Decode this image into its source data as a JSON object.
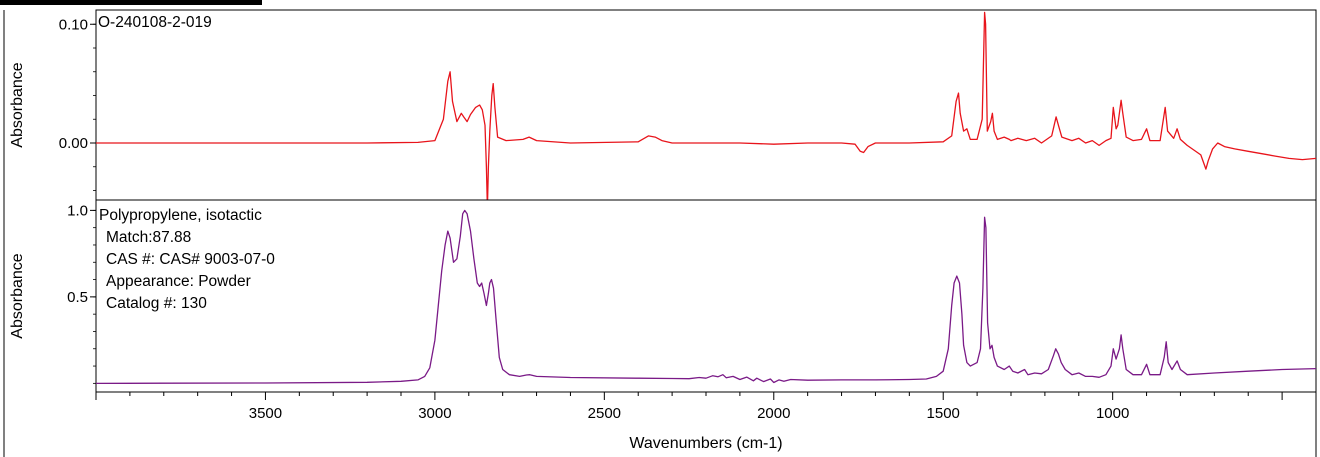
{
  "chart_data": {
    "type": "line",
    "xlabel": "Wavenumbers (cm-1)",
    "x_reversed": true,
    "xlim": [
      4000,
      400
    ],
    "x_ticks": [
      3500,
      3000,
      2500,
      2000,
      1500,
      1000
    ],
    "panels": [
      {
        "ylabel": "Absorbance",
        "ylim": [
          -0.048,
          0.112
        ],
        "y_ticks": [
          0.1,
          0.0
        ],
        "y_tick_labels": [
          "0.10",
          "0.00"
        ],
        "annotations": [
          "O-240108-2-019"
        ],
        "series": [
          {
            "color": "#e8141b",
            "points": [
              [
                4000,
                0.0
              ],
              [
                3800,
                0.0
              ],
              [
                3500,
                0.0
              ],
              [
                3200,
                0.0
              ],
              [
                3050,
                0.0005
              ],
              [
                3000,
                0.002
              ],
              [
                2975,
                0.02
              ],
              [
                2962,
                0.052
              ],
              [
                2955,
                0.06
              ],
              [
                2948,
                0.035
              ],
              [
                2935,
                0.018
              ],
              [
                2922,
                0.025
              ],
              [
                2915,
                0.022
              ],
              [
                2905,
                0.018
              ],
              [
                2895,
                0.024
              ],
              [
                2880,
                0.03
              ],
              [
                2868,
                0.032
              ],
              [
                2860,
                0.028
              ],
              [
                2852,
                0.015
              ],
              [
                2848,
                -0.02
              ],
              [
                2845,
                -0.055
              ],
              [
                2842,
                -0.02
              ],
              [
                2838,
                0.01
              ],
              [
                2832,
                0.04
              ],
              [
                2828,
                0.05
              ],
              [
                2823,
                0.03
              ],
              [
                2815,
                0.005
              ],
              [
                2790,
                0.002
              ],
              [
                2740,
                0.003
              ],
              [
                2722,
                0.005
              ],
              [
                2700,
                0.002
              ],
              [
                2600,
                0.0
              ],
              [
                2400,
                0.001
              ],
              [
                2370,
                0.006
              ],
              [
                2350,
                0.005
              ],
              [
                2330,
                0.002
              ],
              [
                2300,
                0.0
              ],
              [
                2200,
                0.0
              ],
              [
                2100,
                0.0
              ],
              [
                2000,
                -0.001
              ],
              [
                1900,
                0.0
              ],
              [
                1800,
                0.0
              ],
              [
                1760,
                -0.001
              ],
              [
                1745,
                -0.007
              ],
              [
                1735,
                -0.008
              ],
              [
                1722,
                -0.003
              ],
              [
                1700,
                0.0
              ],
              [
                1600,
                0.0
              ],
              [
                1500,
                0.001
              ],
              [
                1475,
                0.006
              ],
              [
                1462,
                0.035
              ],
              [
                1455,
                0.042
              ],
              [
                1450,
                0.025
              ],
              [
                1440,
                0.01
              ],
              [
                1430,
                0.012
              ],
              [
                1420,
                0.003
              ],
              [
                1400,
                0.003
              ],
              [
                1385,
                0.02
              ],
              [
                1378,
                0.11
              ],
              [
                1375,
                0.1
              ],
              [
                1370,
                0.01
              ],
              [
                1360,
                0.018
              ],
              [
                1355,
                0.025
              ],
              [
                1350,
                0.01
              ],
              [
                1340,
                0.003
              ],
              [
                1320,
                0.005
              ],
              [
                1305,
                0.003
              ],
              [
                1300,
                0.002
              ],
              [
                1280,
                0.004
              ],
              [
                1255,
                0.002
              ],
              [
                1230,
                0.004
              ],
              [
                1210,
                0.0
              ],
              [
                1180,
                0.006
              ],
              [
                1167,
                0.022
              ],
              [
                1160,
                0.015
              ],
              [
                1150,
                0.005
              ],
              [
                1120,
                0.002
              ],
              [
                1100,
                0.004
              ],
              [
                1080,
                0.0
              ],
              [
                1060,
                0.002
              ],
              [
                1040,
                -0.002
              ],
              [
                1020,
                0.002
              ],
              [
                1005,
                0.004
              ],
              [
                998,
                0.03
              ],
              [
                990,
                0.012
              ],
              [
                985,
                0.015
              ],
              [
                975,
                0.036
              ],
              [
                970,
                0.025
              ],
              [
                960,
                0.005
              ],
              [
                940,
                0.002
              ],
              [
                915,
                0.003
              ],
              [
                900,
                0.012
              ],
              [
                890,
                0.002
              ],
              [
                860,
                0.002
              ],
              [
                845,
                0.03
              ],
              [
                838,
                0.01
              ],
              [
                820,
                0.004
              ],
              [
                810,
                0.012
              ],
              [
                800,
                0.003
              ],
              [
                780,
                -0.002
              ],
              [
                760,
                -0.006
              ],
              [
                740,
                -0.01
              ],
              [
                725,
                -0.022
              ],
              [
                718,
                -0.015
              ],
              [
                705,
                -0.005
              ],
              [
                690,
                0.0
              ],
              [
                670,
                -0.003
              ],
              [
                640,
                -0.005
              ],
              [
                600,
                -0.007
              ],
              [
                560,
                -0.009
              ],
              [
                520,
                -0.011
              ],
              [
                480,
                -0.013
              ],
              [
                440,
                -0.014
              ],
              [
                400,
                -0.013
              ]
            ]
          }
        ]
      },
      {
        "ylabel": "Absorbance",
        "ylim": [
          -0.05,
          1.06
        ],
        "y_ticks": [
          1.0,
          0.5
        ],
        "y_tick_labels": [
          "1.0",
          "0.5"
        ],
        "annotations": [
          "Polypropylene, isotactic",
          "Match:87.88",
          "CAS #:  CAS# 9003-07-0",
          "Appearance:  Powder",
          "Catalog #:  130"
        ],
        "series": [
          {
            "color": "#7a1a87",
            "points": [
              [
                4000,
                0.0
              ],
              [
                3800,
                0.001
              ],
              [
                3500,
                0.002
              ],
              [
                3200,
                0.006
              ],
              [
                3100,
                0.012
              ],
              [
                3050,
                0.02
              ],
              [
                3030,
                0.04
              ],
              [
                3015,
                0.09
              ],
              [
                3000,
                0.25
              ],
              [
                2990,
                0.45
              ],
              [
                2980,
                0.65
              ],
              [
                2970,
                0.8
              ],
              [
                2962,
                0.88
              ],
              [
                2955,
                0.84
              ],
              [
                2945,
                0.7
              ],
              [
                2935,
                0.72
              ],
              [
                2925,
                0.85
              ],
              [
                2918,
                0.98
              ],
              [
                2912,
                1.0
              ],
              [
                2905,
                0.98
              ],
              [
                2895,
                0.88
              ],
              [
                2885,
                0.72
              ],
              [
                2875,
                0.58
              ],
              [
                2868,
                0.56
              ],
              [
                2862,
                0.58
              ],
              [
                2855,
                0.52
              ],
              [
                2848,
                0.45
              ],
              [
                2842,
                0.52
              ],
              [
                2838,
                0.58
              ],
              [
                2833,
                0.6
              ],
              [
                2827,
                0.55
              ],
              [
                2820,
                0.38
              ],
              [
                2810,
                0.15
              ],
              [
                2800,
                0.08
              ],
              [
                2780,
                0.05
              ],
              [
                2750,
                0.04
              ],
              [
                2730,
                0.048
              ],
              [
                2720,
                0.05
              ],
              [
                2700,
                0.04
              ],
              [
                2600,
                0.034
              ],
              [
                2400,
                0.03
              ],
              [
                2300,
                0.028
              ],
              [
                2250,
                0.027
              ],
              [
                2220,
                0.034
              ],
              [
                2200,
                0.03
              ],
              [
                2180,
                0.044
              ],
              [
                2165,
                0.038
              ],
              [
                2150,
                0.05
              ],
              [
                2140,
                0.032
              ],
              [
                2120,
                0.04
              ],
              [
                2100,
                0.022
              ],
              [
                2080,
                0.036
              ],
              [
                2060,
                0.015
              ],
              [
                2050,
                0.03
              ],
              [
                2030,
                0.01
              ],
              [
                2010,
                0.025
              ],
              [
                2000,
                0.005
              ],
              [
                1985,
                0.02
              ],
              [
                1970,
                0.012
              ],
              [
                1950,
                0.022
              ],
              [
                1900,
                0.018
              ],
              [
                1800,
                0.02
              ],
              [
                1700,
                0.02
              ],
              [
                1600,
                0.022
              ],
              [
                1550,
                0.025
              ],
              [
                1520,
                0.04
              ],
              [
                1500,
                0.07
              ],
              [
                1485,
                0.2
              ],
              [
                1475,
                0.45
              ],
              [
                1468,
                0.58
              ],
              [
                1460,
                0.62
              ],
              [
                1452,
                0.58
              ],
              [
                1445,
                0.4
              ],
              [
                1440,
                0.22
              ],
              [
                1430,
                0.12
              ],
              [
                1420,
                0.1
              ],
              [
                1400,
                0.12
              ],
              [
                1390,
                0.2
              ],
              [
                1383,
                0.55
              ],
              [
                1378,
                0.96
              ],
              [
                1374,
                0.9
              ],
              [
                1369,
                0.35
              ],
              [
                1362,
                0.2
              ],
              [
                1356,
                0.22
              ],
              [
                1350,
                0.15
              ],
              [
                1340,
                0.1
              ],
              [
                1320,
                0.08
              ],
              [
                1305,
                0.1
              ],
              [
                1295,
                0.07
              ],
              [
                1280,
                0.06
              ],
              [
                1260,
                0.08
              ],
              [
                1250,
                0.05
              ],
              [
                1230,
                0.06
              ],
              [
                1210,
                0.055
              ],
              [
                1190,
                0.08
              ],
              [
                1175,
                0.16
              ],
              [
                1168,
                0.2
              ],
              [
                1160,
                0.17
              ],
              [
                1152,
                0.12
              ],
              [
                1140,
                0.08
              ],
              [
                1120,
                0.05
              ],
              [
                1100,
                0.06
              ],
              [
                1080,
                0.04
              ],
              [
                1060,
                0.04
              ],
              [
                1040,
                0.035
              ],
              [
                1020,
                0.05
              ],
              [
                1005,
                0.1
              ],
              [
                998,
                0.2
              ],
              [
                990,
                0.14
              ],
              [
                980,
                0.2
              ],
              [
                975,
                0.28
              ],
              [
                970,
                0.2
              ],
              [
                960,
                0.08
              ],
              [
                940,
                0.05
              ],
              [
                915,
                0.05
              ],
              [
                900,
                0.11
              ],
              [
                890,
                0.05
              ],
              [
                860,
                0.05
              ],
              [
                848,
                0.15
              ],
              [
                842,
                0.24
              ],
              [
                836,
                0.12
              ],
              [
                825,
                0.08
              ],
              [
                810,
                0.13
              ],
              [
                800,
                0.08
              ],
              [
                780,
                0.05
              ],
              [
                700,
                0.06
              ],
              [
                600,
                0.07
              ],
              [
                500,
                0.08
              ],
              [
                400,
                0.085
              ]
            ]
          }
        ]
      }
    ]
  }
}
